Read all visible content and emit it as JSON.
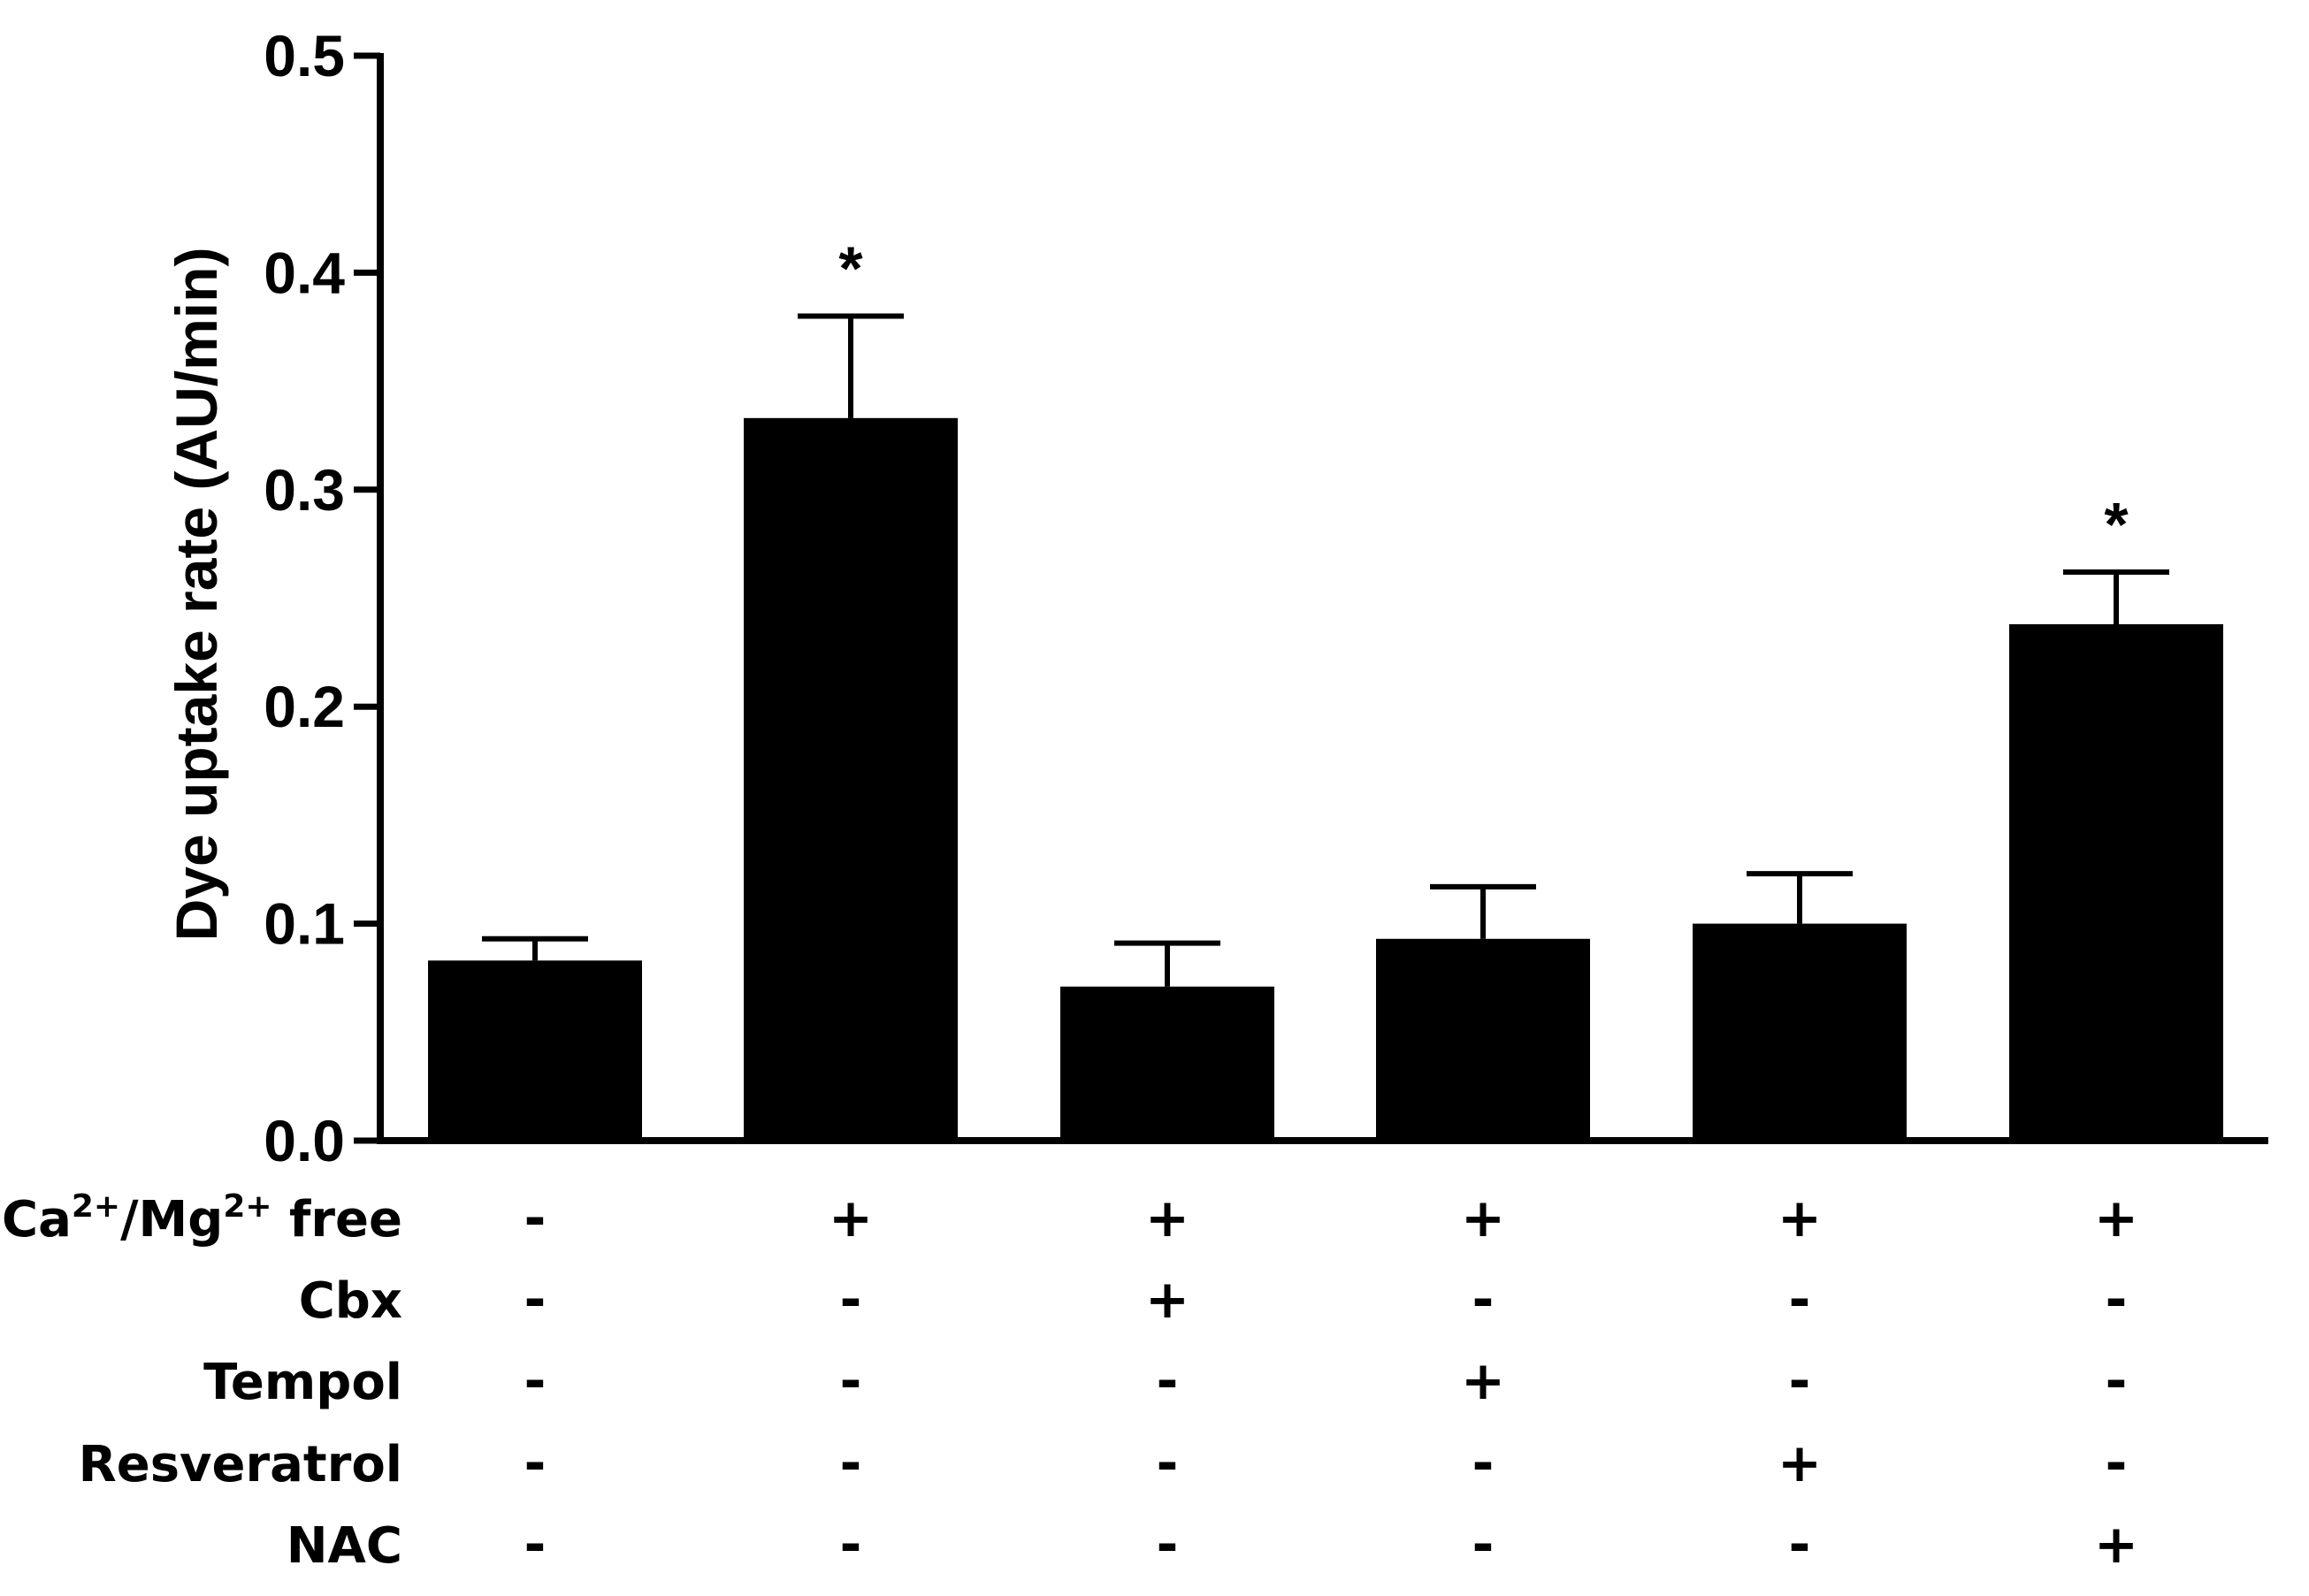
{
  "chart_data": {
    "type": "bar",
    "title": "",
    "xlabel": "",
    "ylabel": "Dye uptake rate (AU/min)",
    "ylim": [
      0,
      0.5
    ],
    "yticks": [
      "0.0",
      "0.1",
      "0.2",
      "0.3",
      "0.4",
      "0.5"
    ],
    "ytick_values": [
      0,
      0.1,
      0.2,
      0.3,
      0.4,
      0.5
    ],
    "grid": false,
    "legend": "none",
    "bar_color": "#000000",
    "values": [
      0.083,
      0.333,
      0.071,
      0.093,
      0.1,
      0.238
    ],
    "errors": [
      0.01,
      0.047,
      0.02,
      0.024,
      0.023,
      0.024
    ],
    "significance": [
      "",
      "*",
      "",
      "",
      "",
      "*"
    ],
    "conditions": [
      {
        "label": "free",
        "prefix": "Ca",
        "sup1": "2+",
        "mid": "/Mg",
        "sup2": "2+",
        "marks": [
          "-",
          "+",
          "+",
          "+",
          "+",
          "+"
        ]
      },
      {
        "label": "Cbx",
        "marks": [
          "-",
          "-",
          "+",
          "-",
          "-",
          "-"
        ]
      },
      {
        "label": "Tempol",
        "marks": [
          "-",
          "-",
          "-",
          "+",
          "-",
          "-"
        ]
      },
      {
        "label": "Resveratrol",
        "marks": [
          "-",
          "-",
          "-",
          "-",
          "+",
          "-"
        ]
      },
      {
        "label": "NAC",
        "marks": [
          "-",
          "-",
          "-",
          "-",
          "-",
          "+"
        ]
      }
    ]
  }
}
